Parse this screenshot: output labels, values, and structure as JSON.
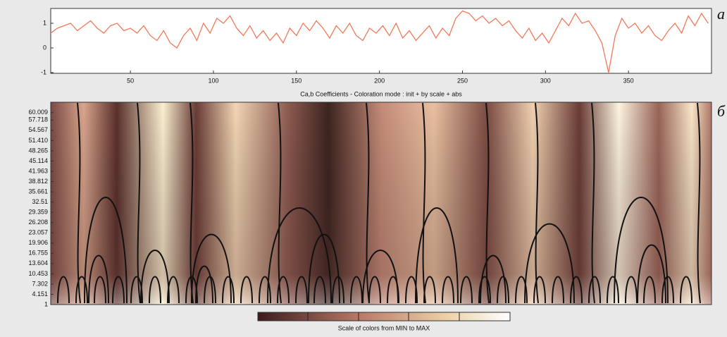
{
  "chart_data": [
    {
      "type": "line",
      "color": "#f07a5a",
      "x": [
        2,
        6,
        10,
        14,
        18,
        22,
        26,
        30,
        34,
        38,
        42,
        46,
        50,
        54,
        58,
        62,
        66,
        70,
        74,
        78,
        82,
        86,
        90,
        94,
        98,
        102,
        106,
        110,
        114,
        118,
        122,
        126,
        130,
        134,
        138,
        142,
        146,
        150,
        154,
        158,
        162,
        166,
        170,
        174,
        178,
        182,
        186,
        190,
        194,
        198,
        202,
        206,
        210,
        214,
        218,
        222,
        226,
        230,
        234,
        238,
        242,
        246,
        250,
        254,
        258,
        262,
        266,
        270,
        274,
        278,
        282,
        286,
        290,
        294,
        298,
        302,
        306,
        310,
        314,
        318,
        322,
        326,
        330,
        334,
        338,
        342,
        346,
        350,
        354,
        358,
        362,
        366,
        370,
        374,
        378,
        382,
        386,
        390,
        394,
        398
      ],
      "values": [
        0.6,
        0.8,
        0.9,
        1.0,
        0.7,
        0.9,
        1.1,
        0.8,
        0.6,
        0.9,
        1.0,
        0.7,
        0.8,
        0.6,
        0.9,
        0.5,
        0.3,
        0.7,
        0.2,
        0.0,
        0.5,
        0.8,
        0.3,
        1.0,
        0.6,
        1.2,
        1.0,
        1.3,
        0.8,
        0.5,
        0.9,
        0.4,
        0.7,
        0.3,
        0.6,
        0.2,
        0.8,
        0.5,
        1.0,
        0.7,
        1.1,
        0.8,
        0.4,
        0.9,
        0.6,
        1.0,
        0.5,
        0.3,
        0.8,
        0.6,
        0.9,
        0.5,
        1.0,
        0.4,
        0.7,
        0.3,
        0.6,
        0.9,
        0.4,
        0.8,
        0.5,
        1.2,
        1.5,
        1.4,
        1.1,
        1.3,
        1.0,
        1.2,
        0.9,
        1.1,
        0.7,
        0.4,
        0.8,
        0.3,
        0.6,
        0.2,
        0.7,
        1.2,
        0.9,
        1.4,
        1.0,
        1.1,
        0.7,
        0.2,
        -1.0,
        0.5,
        1.2,
        0.8,
        1.0,
        0.6,
        0.9,
        0.5,
        0.3,
        0.7,
        1.0,
        0.6,
        1.3,
        0.9,
        1.4,
        1.0
      ],
      "xlim": [
        2,
        400
      ],
      "ylim": [
        -1.03,
        1.6
      ],
      "xticks": [
        50,
        100,
        150,
        200,
        250,
        300,
        350
      ],
      "yticks": [
        -1,
        0,
        1
      ],
      "annotation": "а"
    },
    {
      "type": "heatmap",
      "title": "Ca,b Coefficients  - Coloration mode : init + by scale + abs",
      "ylim": [
        1,
        63.2
      ],
      "yticks": [
        60.009,
        57.718,
        54.567,
        {
          "value": 51.41,
          "label": "51.410"
        },
        48.265,
        45.114,
        41.963,
        38.812,
        35.661,
        32.51,
        29.359,
        26.208,
        23.057,
        19.906,
        16.755,
        13.604,
        10.453,
        7.302,
        4.151,
        1
      ],
      "colorbar_label": "Scale of colors from MIN to MAX",
      "annotation": "б"
    }
  ]
}
